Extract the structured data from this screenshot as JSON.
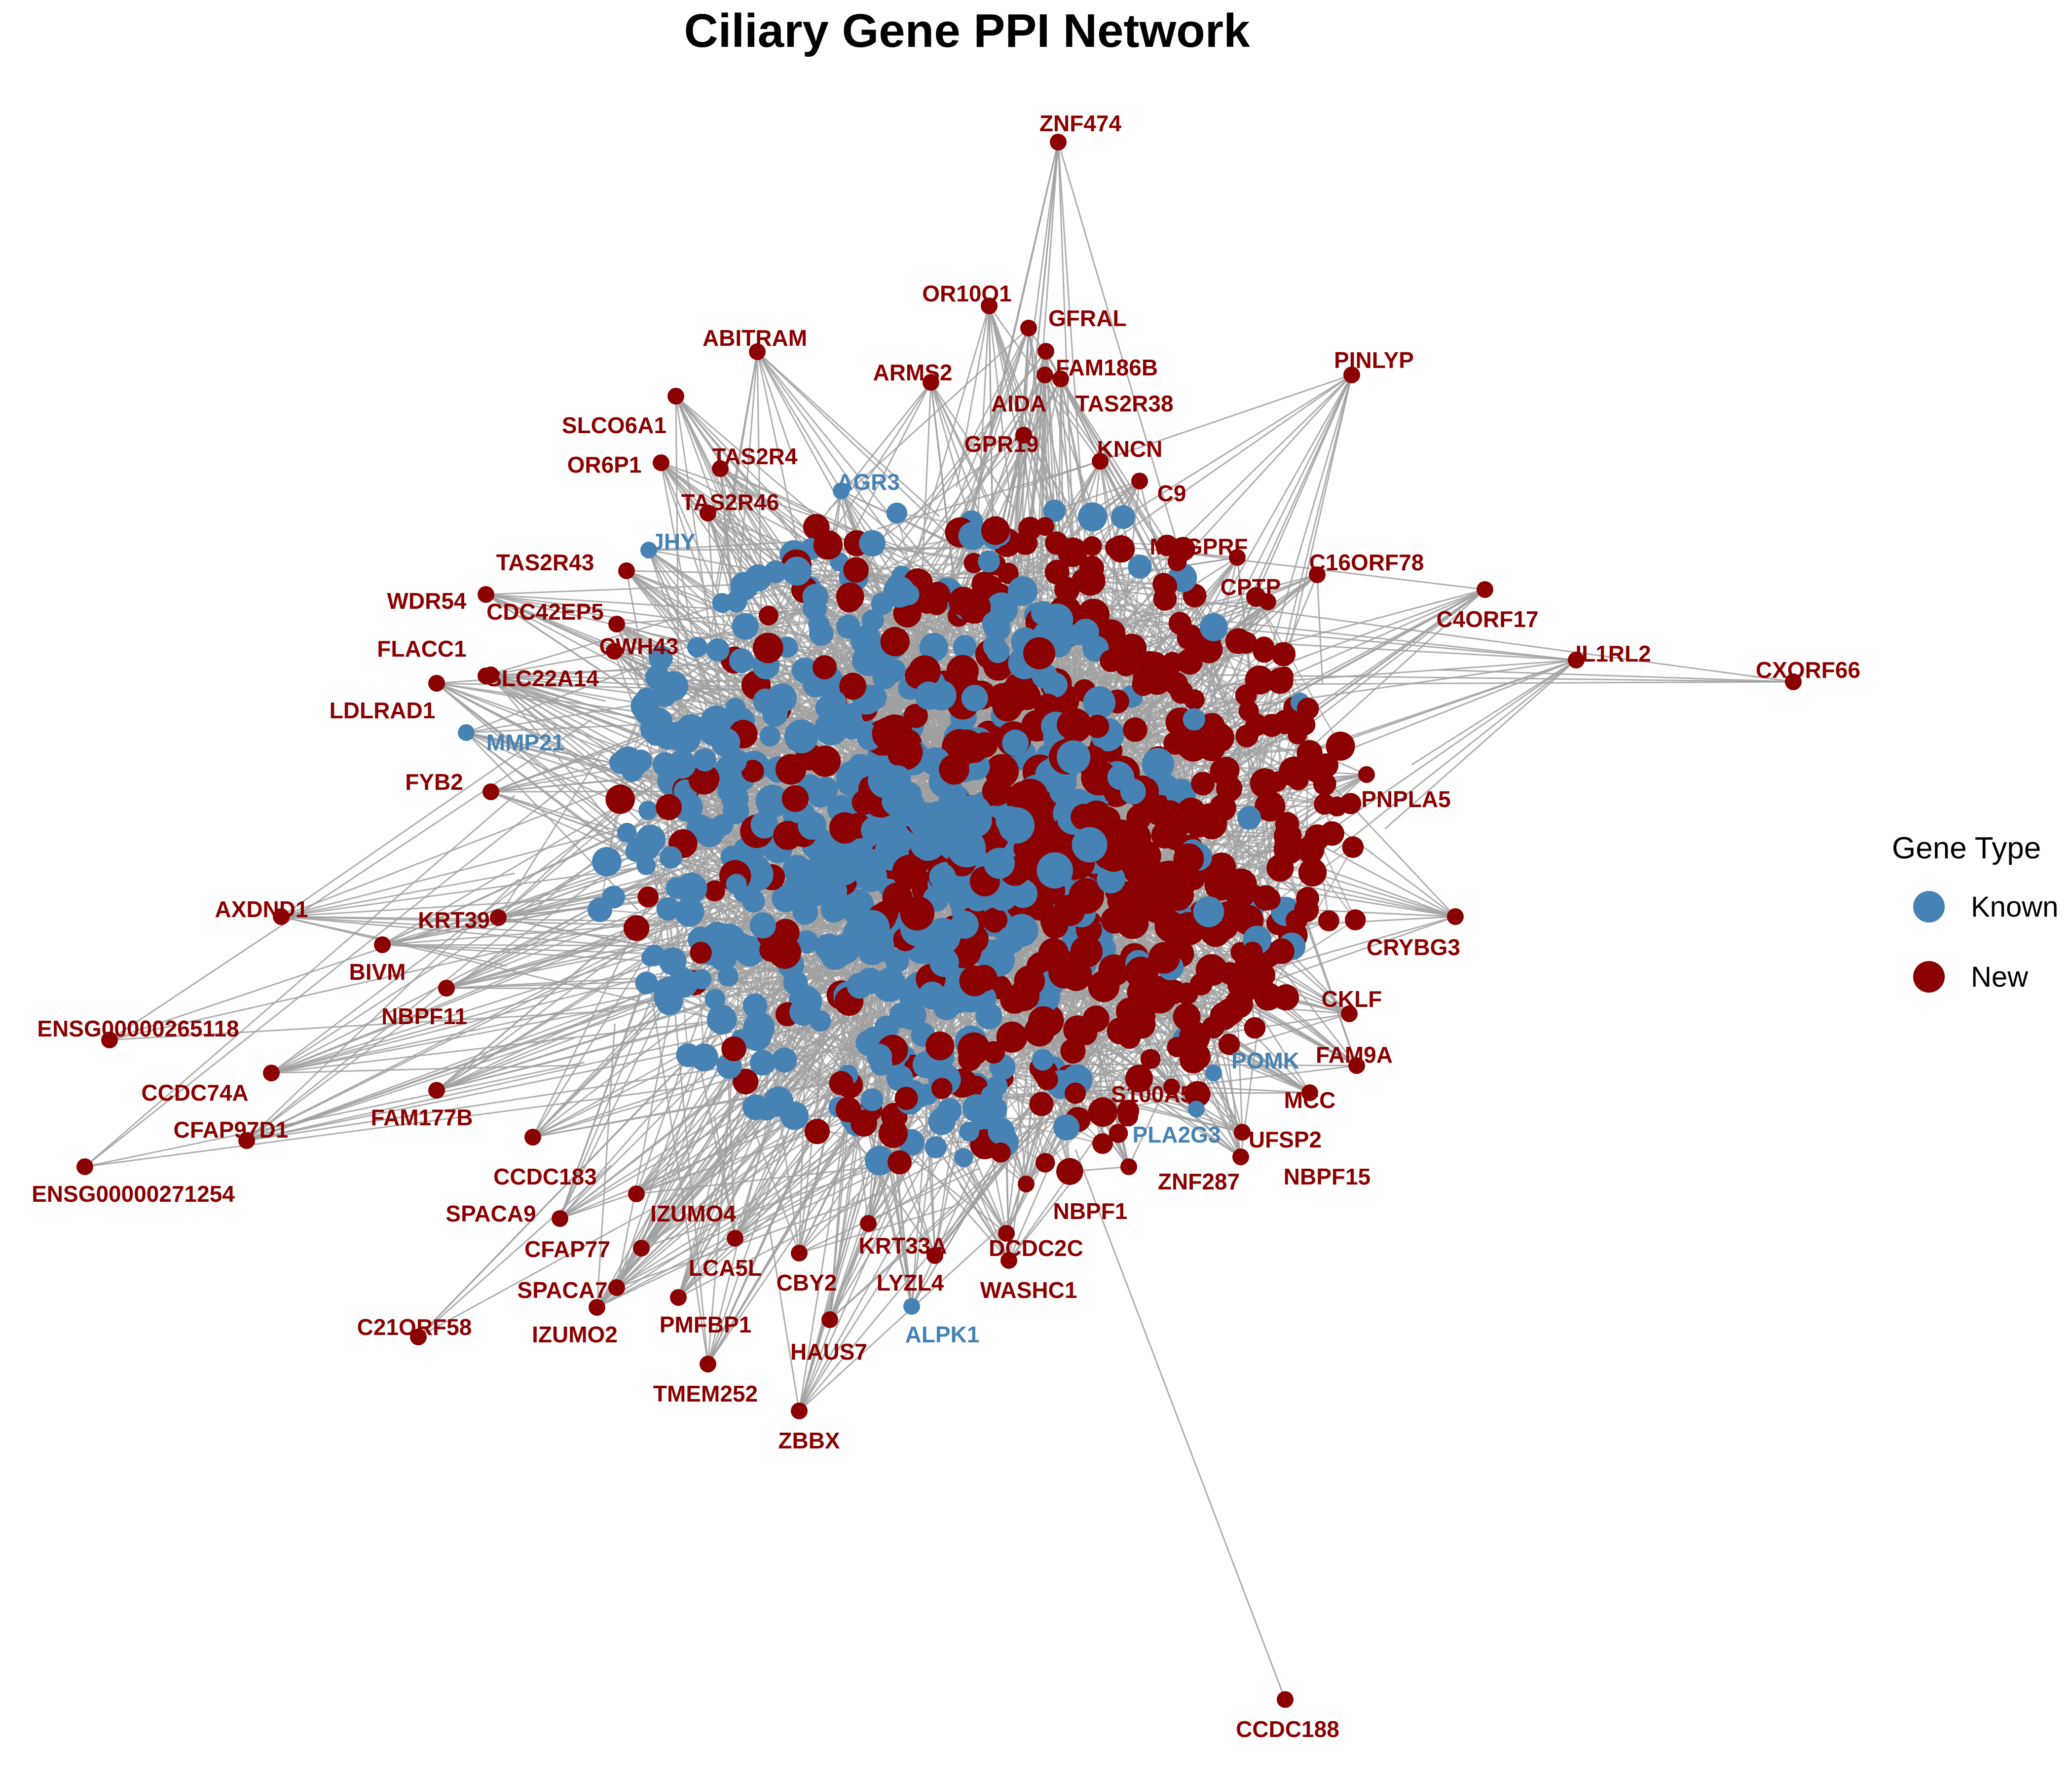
{
  "title": "Ciliary Gene PPI Network",
  "legend": {
    "title": "Gene Type",
    "items": [
      {
        "key": "known",
        "label": "Known",
        "color": "#4682b4"
      },
      {
        "key": "new",
        "label": "New",
        "color": "#8b0000"
      }
    ]
  },
  "edge_color": "#a0a0a0",
  "labeled_nodes": [
    {
      "name": "ZNF474",
      "type": "new"
    },
    {
      "name": "OR10Q1",
      "type": "new"
    },
    {
      "name": "GFRAL",
      "type": "new"
    },
    {
      "name": "ABITRAM",
      "type": "new"
    },
    {
      "name": "FAM186B",
      "type": "new"
    },
    {
      "name": "PINLYP",
      "type": "new"
    },
    {
      "name": "ARMS2",
      "type": "new"
    },
    {
      "name": "AIDA",
      "type": "new"
    },
    {
      "name": "TAS2R38",
      "type": "new"
    },
    {
      "name": "SLCO6A1",
      "type": "new"
    },
    {
      "name": "GPR19",
      "type": "new"
    },
    {
      "name": "KNCN",
      "type": "new"
    },
    {
      "name": "OR6P1",
      "type": "new"
    },
    {
      "name": "TAS2R4",
      "type": "new"
    },
    {
      "name": "AGR3",
      "type": "known"
    },
    {
      "name": "C9",
      "type": "new"
    },
    {
      "name": "TAS2R46",
      "type": "new"
    },
    {
      "name": "JHY",
      "type": "known"
    },
    {
      "name": "MRGPRF",
      "type": "new"
    },
    {
      "name": "TAS2R43",
      "type": "new"
    },
    {
      "name": "C16ORF78",
      "type": "new"
    },
    {
      "name": "CPTP",
      "type": "new"
    },
    {
      "name": "WDR54",
      "type": "new"
    },
    {
      "name": "CDC42EP5",
      "type": "new"
    },
    {
      "name": "C4ORF17",
      "type": "new"
    },
    {
      "name": "FLACC1",
      "type": "new"
    },
    {
      "name": "CWH43",
      "type": "new"
    },
    {
      "name": "IL1RL2",
      "type": "new"
    },
    {
      "name": "CXORF66",
      "type": "new"
    },
    {
      "name": "SLC22A14",
      "type": "new"
    },
    {
      "name": "LDLRAD1",
      "type": "new"
    },
    {
      "name": "MMP21",
      "type": "known"
    },
    {
      "name": "FYB2",
      "type": "new"
    },
    {
      "name": "PNPLA5",
      "type": "new"
    },
    {
      "name": "AXDND1",
      "type": "new"
    },
    {
      "name": "KRT39",
      "type": "new"
    },
    {
      "name": "CRYBG3",
      "type": "new"
    },
    {
      "name": "BIVM",
      "type": "new"
    },
    {
      "name": "NBPF11",
      "type": "new"
    },
    {
      "name": "CKLF",
      "type": "new"
    },
    {
      "name": "ENSG00000265118",
      "type": "new"
    },
    {
      "name": "FAM9A",
      "type": "new"
    },
    {
      "name": "POMK",
      "type": "known"
    },
    {
      "name": "CCDC74A",
      "type": "new"
    },
    {
      "name": "S100A5",
      "type": "new"
    },
    {
      "name": "MCC",
      "type": "new"
    },
    {
      "name": "FAM177B",
      "type": "new"
    },
    {
      "name": "CFAP97D1",
      "type": "new"
    },
    {
      "name": "PLA2G3",
      "type": "known"
    },
    {
      "name": "UFSP2",
      "type": "new"
    },
    {
      "name": "CCDC183",
      "type": "new"
    },
    {
      "name": "ZNF287",
      "type": "new"
    },
    {
      "name": "NBPF15",
      "type": "new"
    },
    {
      "name": "ENSG00000271254",
      "type": "new"
    },
    {
      "name": "SPACA9",
      "type": "new"
    },
    {
      "name": "IZUMO4",
      "type": "new"
    },
    {
      "name": "NBPF1",
      "type": "new"
    },
    {
      "name": "CFAP77",
      "type": "new"
    },
    {
      "name": "KRT33A",
      "type": "new"
    },
    {
      "name": "DCDC2C",
      "type": "new"
    },
    {
      "name": "LCA5L",
      "type": "new"
    },
    {
      "name": "CBY2",
      "type": "new"
    },
    {
      "name": "LYZL4",
      "type": "new"
    },
    {
      "name": "WASHC1",
      "type": "new"
    },
    {
      "name": "SPACA7",
      "type": "new"
    },
    {
      "name": "C21ORF58",
      "type": "new"
    },
    {
      "name": "IZUMO2",
      "type": "new"
    },
    {
      "name": "PMFBP1",
      "type": "new"
    },
    {
      "name": "ALPK1",
      "type": "known"
    },
    {
      "name": "HAUS7",
      "type": "new"
    },
    {
      "name": "TMEM252",
      "type": "new"
    },
    {
      "name": "ZBBX",
      "type": "new"
    },
    {
      "name": "CCDC188",
      "type": "new"
    }
  ]
}
